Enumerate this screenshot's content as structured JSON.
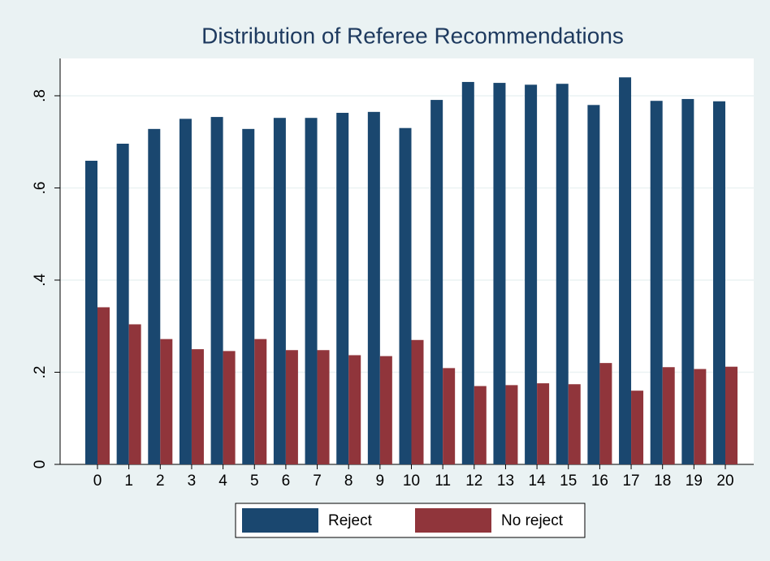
{
  "chart_data": {
    "type": "bar",
    "title": "Distribution of Referee Recommendations",
    "categories": [
      "0",
      "1",
      "2",
      "3",
      "4",
      "5",
      "6",
      "7",
      "8",
      "9",
      "10",
      "11",
      "12",
      "13",
      "14",
      "15",
      "16",
      "17",
      "18",
      "19",
      "20"
    ],
    "series": [
      {
        "name": "Reject",
        "color": "#1a476f",
        "values": [
          0.659,
          0.696,
          0.728,
          0.75,
          0.754,
          0.728,
          0.752,
          0.752,
          0.763,
          0.765,
          0.73,
          0.791,
          0.83,
          0.828,
          0.824,
          0.826,
          0.78,
          0.84,
          0.789,
          0.793,
          0.788
        ]
      },
      {
        "name": "No reject",
        "color": "#90353b",
        "values": [
          0.341,
          0.304,
          0.272,
          0.25,
          0.246,
          0.272,
          0.248,
          0.248,
          0.237,
          0.235,
          0.27,
          0.209,
          0.17,
          0.172,
          0.176,
          0.174,
          0.22,
          0.16,
          0.211,
          0.207,
          0.212
        ]
      }
    ],
    "ylim": [
      0,
      0.881
    ],
    "yticks": [
      0,
      {
        "value": 0.2,
        "label": ".2"
      },
      {
        "value": 0.4,
        "label": ".4"
      },
      {
        "value": 0.6,
        "label": ".6"
      },
      {
        "value": 0.8,
        "label": ".8"
      }
    ],
    "grid": true,
    "legend": "bottom"
  }
}
